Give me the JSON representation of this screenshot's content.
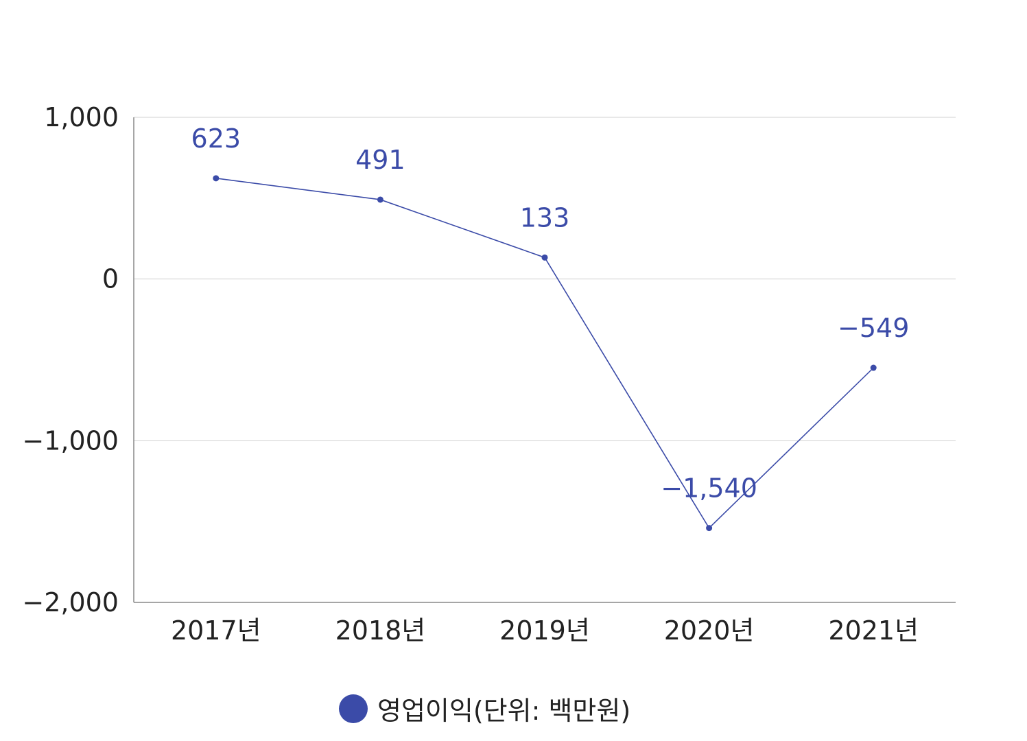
{
  "chart_data": {
    "type": "line",
    "categories": [
      "2017년",
      "2018년",
      "2019년",
      "2020년",
      "2021년"
    ],
    "series": [
      {
        "name": "영업이익(단위: 백만원)",
        "values": [
          623,
          491,
          133,
          -1540,
          -549
        ],
        "color": "#3B4BA8"
      }
    ],
    "data_labels": [
      "623",
      "491",
      "133",
      "−1,540",
      "−549"
    ],
    "ylim": [
      -2000,
      1000
    ],
    "yticks": [
      1000,
      0,
      -1000,
      -2000
    ],
    "ytick_labels": [
      "1,000",
      "0",
      "−1,000",
      "−2,000"
    ],
    "grid": true,
    "legend_position": "bottom",
    "title": "",
    "xlabel": "",
    "ylabel": ""
  }
}
